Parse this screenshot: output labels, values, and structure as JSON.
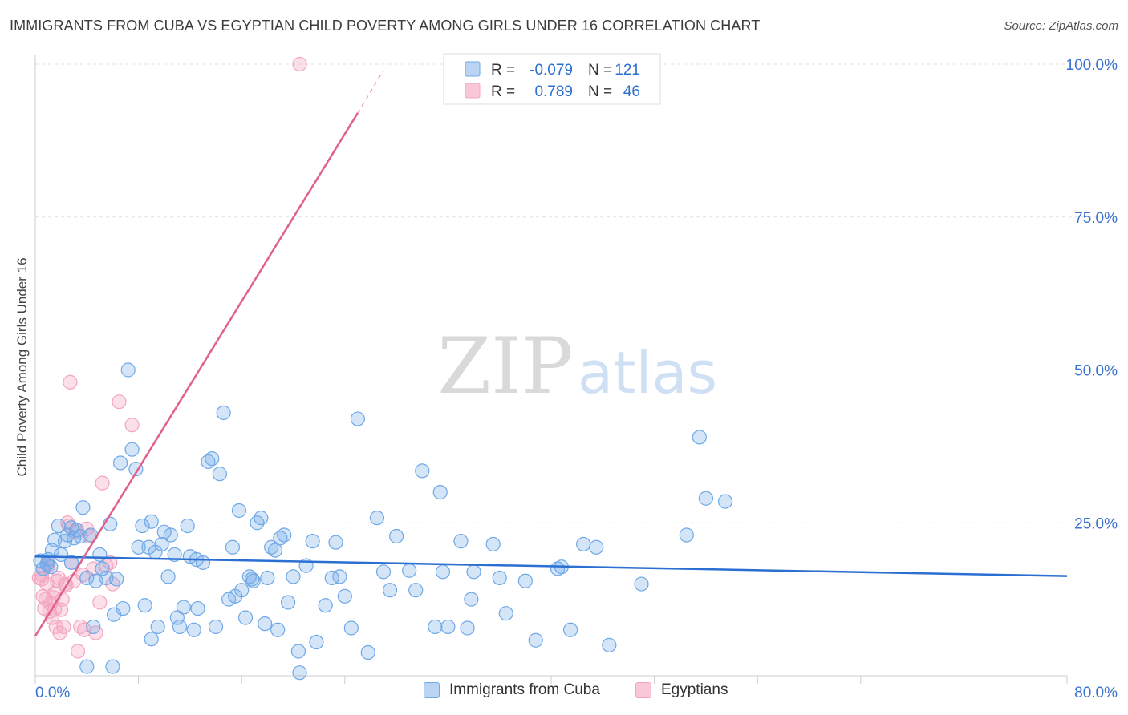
{
  "title": "IMMIGRANTS FROM CUBA VS EGYPTIAN CHILD POVERTY AMONG GIRLS UNDER 16 CORRELATION CHART",
  "source": "Source: ZipAtlas.com",
  "watermark": {
    "zip": "ZIP",
    "atlas": "atlas"
  },
  "legend_top": [
    {
      "r_label": "R =",
      "r_value": "-0.079",
      "n_label": "N =",
      "n_value": "121"
    },
    {
      "r_label": "R =",
      "r_value": "0.789",
      "n_label": "N =",
      "n_value": "46"
    }
  ],
  "chart_data": {
    "type": "scatter",
    "title": "IMMIGRANTS FROM CUBA VS EGYPTIAN CHILD POVERTY AMONG GIRLS UNDER 16 CORRELATION CHART",
    "xlabel": "",
    "ylabel": "Child Poverty Among Girls Under 16",
    "xlim": [
      0,
      80
    ],
    "ylim": [
      0,
      100
    ],
    "x_tick_labels": [
      "0.0%",
      "80.0%"
    ],
    "y_tick_labels": [
      "25.0%",
      "50.0%",
      "75.0%",
      "100.0%"
    ],
    "y_ticks": [
      25,
      50,
      75,
      100
    ],
    "grid": true,
    "legend_position": "top-center",
    "colors": {
      "cuba": "#6fa8e8",
      "cuba_line": "#2a6fd1",
      "egypt": "#f4a6bf",
      "egypt_line": "#e0618c",
      "tick": "#3a72d0"
    },
    "series": [
      {
        "name": "Immigrants from Cuba",
        "r": -0.079,
        "n": 121,
        "trend": {
          "x0": 0,
          "y0": 19.5,
          "x1": 80,
          "y1": 16.3
        },
        "points": [
          [
            0.4,
            18.8
          ],
          [
            0.6,
            17.5
          ],
          [
            0.9,
            18.2
          ],
          [
            1.0,
            19.0
          ],
          [
            1.2,
            17.8
          ],
          [
            1.3,
            20.5
          ],
          [
            1.5,
            22.2
          ],
          [
            1.8,
            24.5
          ],
          [
            2.0,
            19.8
          ],
          [
            2.3,
            22.0
          ],
          [
            2.5,
            23.0
          ],
          [
            2.8,
            24.2
          ],
          [
            3.0,
            22.5
          ],
          [
            3.2,
            23.8
          ],
          [
            3.5,
            22.8
          ],
          [
            3.7,
            27.5
          ],
          [
            4.0,
            16.0
          ],
          [
            4.3,
            23.0
          ],
          [
            4.5,
            8.0
          ],
          [
            4.7,
            15.5
          ],
          [
            5.0,
            19.8
          ],
          [
            5.2,
            17.5
          ],
          [
            5.5,
            16.0
          ],
          [
            5.8,
            24.8
          ],
          [
            6.1,
            10.0
          ],
          [
            6.3,
            15.8
          ],
          [
            6.6,
            34.8
          ],
          [
            6.8,
            11.0
          ],
          [
            7.2,
            50.0
          ],
          [
            7.5,
            37.0
          ],
          [
            7.8,
            33.8
          ],
          [
            8.0,
            21.0
          ],
          [
            8.3,
            24.5
          ],
          [
            8.5,
            11.5
          ],
          [
            8.8,
            21.0
          ],
          [
            9.0,
            25.2
          ],
          [
            9.3,
            20.2
          ],
          [
            9.5,
            8.0
          ],
          [
            9.8,
            21.5
          ],
          [
            10.0,
            23.5
          ],
          [
            10.3,
            16.2
          ],
          [
            10.5,
            23.0
          ],
          [
            10.8,
            19.8
          ],
          [
            11.0,
            9.5
          ],
          [
            11.2,
            8.0
          ],
          [
            11.5,
            11.2
          ],
          [
            11.8,
            24.5
          ],
          [
            12.0,
            19.5
          ],
          [
            12.3,
            7.5
          ],
          [
            12.6,
            11.0
          ],
          [
            13.0,
            18.5
          ],
          [
            13.4,
            35.0
          ],
          [
            13.7,
            35.5
          ],
          [
            14.0,
            8.0
          ],
          [
            14.3,
            33.0
          ],
          [
            14.6,
            43.0
          ],
          [
            15.0,
            12.5
          ],
          [
            15.3,
            21.0
          ],
          [
            15.5,
            13.0
          ],
          [
            15.8,
            27.0
          ],
          [
            16.0,
            14.0
          ],
          [
            16.3,
            9.5
          ],
          [
            16.6,
            16.2
          ],
          [
            16.9,
            15.5
          ],
          [
            17.2,
            25.0
          ],
          [
            17.5,
            25.8
          ],
          [
            17.8,
            8.5
          ],
          [
            18.0,
            16.0
          ],
          [
            18.3,
            21.0
          ],
          [
            18.6,
            20.5
          ],
          [
            18.8,
            7.5
          ],
          [
            19.0,
            22.5
          ],
          [
            19.3,
            23.0
          ],
          [
            19.6,
            12.0
          ],
          [
            20.0,
            16.2
          ],
          [
            20.4,
            4.0
          ],
          [
            21.0,
            18.0
          ],
          [
            21.5,
            22.0
          ],
          [
            21.8,
            5.5
          ],
          [
            22.5,
            11.5
          ],
          [
            23.0,
            16.0
          ],
          [
            23.3,
            21.8
          ],
          [
            23.6,
            16.2
          ],
          [
            24.0,
            13.0
          ],
          [
            24.5,
            7.8
          ],
          [
            25.0,
            42.0
          ],
          [
            25.8,
            3.8
          ],
          [
            26.5,
            25.8
          ],
          [
            27.0,
            17.0
          ],
          [
            27.5,
            14.0
          ],
          [
            28.0,
            22.8
          ],
          [
            29.0,
            17.2
          ],
          [
            29.5,
            14.0
          ],
          [
            30.0,
            33.5
          ],
          [
            31.0,
            8.0
          ],
          [
            31.4,
            30.0
          ],
          [
            31.6,
            17.0
          ],
          [
            32.0,
            8.0
          ],
          [
            33.0,
            22.0
          ],
          [
            33.5,
            7.8
          ],
          [
            33.8,
            12.5
          ],
          [
            34.0,
            17.0
          ],
          [
            35.5,
            21.5
          ],
          [
            36.0,
            16.0
          ],
          [
            36.5,
            10.2
          ],
          [
            38.0,
            15.5
          ],
          [
            38.8,
            5.8
          ],
          [
            40.5,
            17.5
          ],
          [
            40.8,
            17.8
          ],
          [
            41.5,
            7.5
          ],
          [
            42.5,
            21.5
          ],
          [
            43.5,
            21.0
          ],
          [
            44.5,
            5.0
          ],
          [
            47.0,
            15.0
          ],
          [
            50.5,
            23.0
          ],
          [
            51.5,
            39.0
          ],
          [
            52.0,
            29.0
          ],
          [
            53.5,
            28.5
          ],
          [
            16.8,
            15.8
          ],
          [
            9.0,
            6.0
          ],
          [
            4.0,
            1.5
          ],
          [
            20.5,
            0.5
          ],
          [
            12.5,
            19.0
          ],
          [
            2.8,
            18.5
          ],
          [
            6.0,
            1.5
          ]
        ]
      },
      {
        "name": "Egyptians",
        "r": 0.789,
        "n": 46,
        "trend": {
          "x0": 0,
          "y0": 6.5,
          "x1": 25,
          "y1": 92.0,
          "dash_to": {
            "x": 27,
            "y": 99
          }
        },
        "points": [
          [
            0.3,
            16.0
          ],
          [
            0.5,
            16.5
          ],
          [
            0.6,
            13.0
          ],
          [
            0.7,
            11.0
          ],
          [
            0.8,
            12.5
          ],
          [
            0.9,
            15.0
          ],
          [
            1.0,
            18.0
          ],
          [
            1.1,
            10.5
          ],
          [
            1.2,
            11.8
          ],
          [
            1.3,
            9.5
          ],
          [
            1.4,
            12.8
          ],
          [
            1.5,
            10.8
          ],
          [
            1.6,
            8.0
          ],
          [
            1.7,
            15.5
          ],
          [
            1.8,
            16.0
          ],
          [
            1.9,
            7.0
          ],
          [
            2.0,
            10.8
          ],
          [
            2.1,
            12.5
          ],
          [
            2.2,
            8.0
          ],
          [
            2.3,
            15.0
          ],
          [
            2.5,
            25.0
          ],
          [
            2.6,
            24.5
          ],
          [
            2.7,
            48.0
          ],
          [
            2.8,
            18.5
          ],
          [
            3.0,
            15.5
          ],
          [
            3.2,
            23.5
          ],
          [
            3.3,
            4.0
          ],
          [
            3.5,
            8.0
          ],
          [
            3.7,
            16.5
          ],
          [
            4.0,
            24.0
          ],
          [
            4.2,
            22.8
          ],
          [
            4.5,
            17.5
          ],
          [
            4.7,
            7.0
          ],
          [
            5.0,
            12.0
          ],
          [
            5.2,
            31.5
          ],
          [
            5.5,
            18.0
          ],
          [
            5.8,
            18.5
          ],
          [
            6.0,
            15.0
          ],
          [
            6.5,
            44.8
          ],
          [
            7.5,
            41.0
          ],
          [
            20.5,
            100.0
          ],
          [
            1.0,
            18.5
          ],
          [
            1.5,
            13.5
          ],
          [
            2.4,
            14.8
          ],
          [
            3.8,
            7.5
          ],
          [
            0.5,
            15.8
          ]
        ]
      }
    ]
  },
  "legend_bottom": [
    {
      "label": "Immigrants from Cuba"
    },
    {
      "label": "Egyptians"
    }
  ]
}
